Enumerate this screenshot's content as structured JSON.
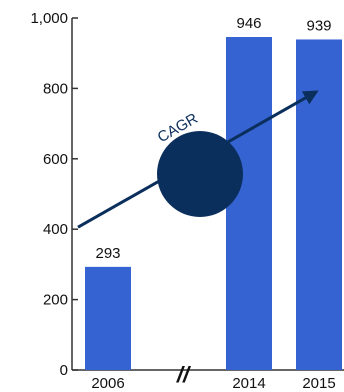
{
  "chart_data": {
    "type": "bar",
    "categories": [
      "2006",
      "2014",
      "2015"
    ],
    "values": [
      293,
      946,
      939
    ],
    "title": "",
    "xlabel": "",
    "ylabel": "",
    "ylim": [
      0,
      1000
    ],
    "yticks": [
      "0",
      "200",
      "400",
      "600",
      "800",
      "1,000"
    ],
    "ytick_values": [
      0,
      200,
      400,
      600,
      800,
      1000
    ],
    "data_labels": [
      "293",
      "946",
      "939"
    ],
    "axis_break_symbol": "//",
    "grid": false,
    "legend": "none",
    "bar_color": "#3563d2",
    "annotation": {
      "label": "CAGR",
      "circle_color": "#0b2f5c",
      "arrow_color": "#0b2f5c",
      "from_category": "2006",
      "to_category": "2015"
    }
  }
}
